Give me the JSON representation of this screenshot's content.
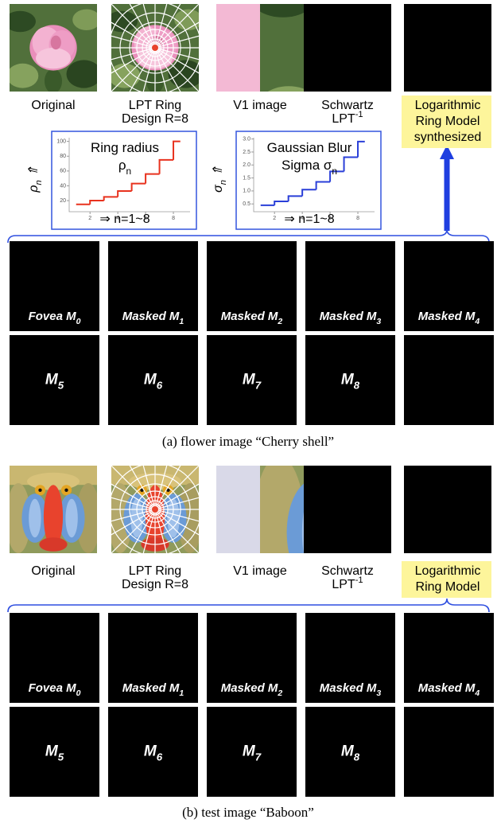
{
  "panels": [
    {
      "top_labels": [
        [
          [
            "Original"
          ]
        ],
        [
          [
            "LPT Ring"
          ],
          [
            "Design R=8"
          ]
        ],
        [
          [
            "V1 image"
          ]
        ],
        [
          [
            "Schwartz"
          ],
          [
            "LPT",
            {
              "sup": "-1"
            }
          ]
        ],
        [
          [
            "Logarithmic"
          ],
          [
            "Ring Model"
          ],
          [
            "synthesized"
          ]
        ]
      ],
      "charts": [
        {
          "type": "step",
          "title": [
            [
              "Ring radius"
            ],
            [
              "ρ",
              {
                "sub": "n"
              }
            ]
          ],
          "ylabel": [
            [
              "ρ",
              {
                "sub": "n"
              },
              " ⇑"
            ]
          ],
          "xlabel": [
            [
              "⇒ n=1~8"
            ]
          ],
          "color": "#e8321e",
          "x": [
            1,
            2,
            3,
            4,
            5,
            6,
            7,
            8
          ],
          "values": [
            15,
            20,
            25,
            33,
            43,
            56,
            75,
            100
          ],
          "xlim": [
            0.5,
            9.2
          ],
          "ylim": [
            5,
            105
          ],
          "xticks": [
            2,
            4,
            6,
            8
          ],
          "yticks": [
            20,
            40,
            60,
            80,
            100
          ]
        },
        {
          "type": "step",
          "title": [
            [
              "Gaussian Blur"
            ],
            [
              "Sigma σ",
              {
                "sub": "n"
              }
            ]
          ],
          "ylabel": [
            [
              "σ",
              {
                "sub": "n"
              },
              " ⇑"
            ]
          ],
          "xlabel": [
            [
              "⇒ n=1~8"
            ]
          ],
          "color": "#2a3fd8",
          "x": [
            1,
            2,
            3,
            4,
            5,
            6,
            7,
            8
          ],
          "values": [
            0.45,
            0.6,
            0.8,
            1.05,
            1.35,
            1.75,
            2.3,
            2.9
          ],
          "xlim": [
            0.5,
            9.2
          ],
          "ylim": [
            0.2,
            3.05
          ],
          "xticks": [
            2,
            4,
            6,
            8
          ],
          "yticks": [
            0.5,
            {
              "value": 1,
              "label": "1.0"
            },
            1.5,
            {
              "value": 2,
              "label": "2.0"
            },
            2.5,
            {
              "value": 3,
              "label": "3.0"
            }
          ]
        }
      ],
      "tile_labels": [
        [
          [
            "Fovea M",
            {
              "sub": "0"
            }
          ]
        ],
        [
          [
            "Masked M",
            {
              "sub": "1"
            }
          ]
        ],
        [
          [
            "Masked M",
            {
              "sub": "2"
            }
          ]
        ],
        [
          [
            "Masked M",
            {
              "sub": "3"
            }
          ]
        ],
        [
          [
            "Masked M",
            {
              "sub": "4"
            }
          ]
        ],
        [
          [
            "M",
            {
              "sub": "5"
            }
          ]
        ],
        [
          [
            "M",
            {
              "sub": "6"
            }
          ]
        ],
        [
          [
            "M",
            {
              "sub": "7"
            }
          ]
        ],
        [
          [
            "M",
            {
              "sub": "8"
            }
          ]
        ]
      ],
      "caption": "(a) flower image “Cherry shell”"
    },
    {
      "top_labels": [
        [
          [
            "Original"
          ]
        ],
        [
          [
            "LPT Ring"
          ],
          [
            "Design R=8"
          ]
        ],
        [
          [
            "V1 image"
          ]
        ],
        [
          [
            "Schwartz"
          ],
          [
            "LPT",
            {
              "sup": "-1"
            }
          ]
        ],
        [
          [
            "Logarithmic"
          ],
          [
            "Ring Model"
          ]
        ]
      ],
      "tile_labels": [
        [
          [
            "Fovea M",
            {
              "sub": "0"
            }
          ]
        ],
        [
          [
            "Masked M",
            {
              "sub": "1"
            }
          ]
        ],
        [
          [
            "Masked M",
            {
              "sub": "2"
            }
          ]
        ],
        [
          [
            "Masked M",
            {
              "sub": "3"
            }
          ]
        ],
        [
          [
            "Masked M",
            {
              "sub": "4"
            }
          ]
        ],
        [
          [
            "M",
            {
              "sub": "5"
            }
          ]
        ],
        [
          [
            "M",
            {
              "sub": "6"
            }
          ]
        ],
        [
          [
            "M",
            {
              "sub": "7"
            }
          ]
        ],
        [
          [
            "M",
            {
              "sub": "8"
            }
          ]
        ]
      ],
      "caption": "(b) test image “Baboon”"
    }
  ]
}
